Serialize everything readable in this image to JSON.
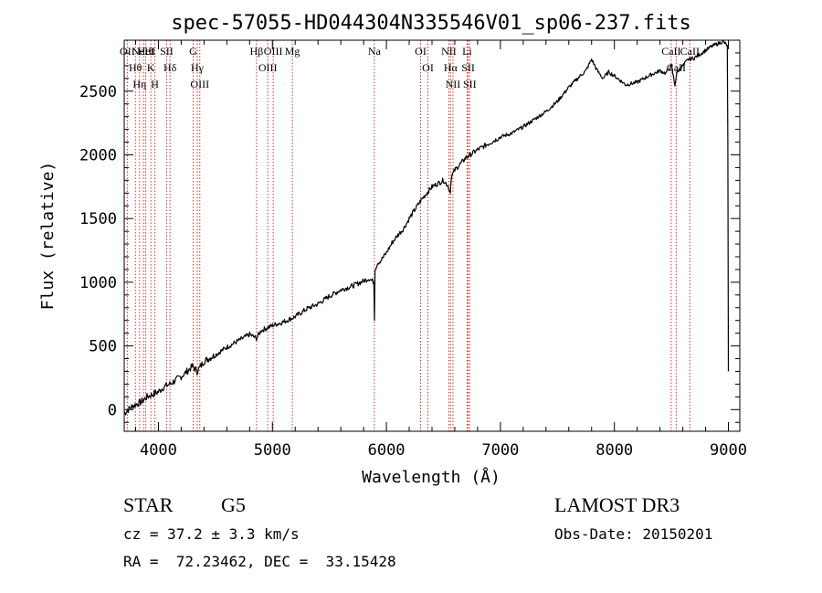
{
  "chart_data": {
    "type": "line",
    "title": "spec-57055-HD044304N335546V01_sp06-237.fits",
    "xlabel": "Wavelength (Å)",
    "ylabel": "Flux (relative)",
    "xlim": [
      3700,
      9100
    ],
    "ylim": [
      -170,
      2900
    ],
    "x_ticks": [
      4000,
      5000,
      6000,
      7000,
      8000,
      9000
    ],
    "y_ticks": [
      0,
      500,
      1000,
      1500,
      2000,
      2500
    ],
    "grid": false,
    "series": [
      {
        "name": "flux",
        "color": "#000000",
        "x": [
          3700,
          3760,
          3800,
          3850,
          3900,
          3950,
          4000,
          4050,
          4100,
          4150,
          4200,
          4250,
          4300,
          4340,
          4400,
          4500,
          4600,
          4700,
          4800,
          4860,
          4900,
          5000,
          5100,
          5200,
          5300,
          5400,
          5500,
          5600,
          5700,
          5800,
          5850,
          5890,
          5895,
          5900,
          5920,
          5950,
          6000,
          6050,
          6100,
          6150,
          6200,
          6300,
          6400,
          6500,
          6540,
          6560,
          6570,
          6600,
          6700,
          6800,
          6900,
          7000,
          7100,
          7200,
          7300,
          7400,
          7500,
          7600,
          7700,
          7750,
          7800,
          7850,
          7900,
          7950,
          8000,
          8100,
          8200,
          8300,
          8400,
          8450,
          8500,
          8530,
          8550,
          8600,
          8650,
          8700,
          8800,
          8850,
          8900,
          8950,
          8990,
          8995,
          9000
        ],
        "values": [
          -30,
          20,
          40,
          60,
          100,
          120,
          140,
          180,
          200,
          230,
          260,
          300,
          340,
          300,
          380,
          430,
          490,
          540,
          590,
          560,
          620,
          660,
          690,
          730,
          790,
          830,
          890,
          940,
          970,
          1010,
          1030,
          1000,
          700,
          1100,
          1150,
          1170,
          1230,
          1310,
          1370,
          1420,
          1500,
          1640,
          1750,
          1800,
          1760,
          1700,
          1830,
          1880,
          1980,
          2040,
          2090,
          2140,
          2170,
          2220,
          2280,
          2340,
          2420,
          2530,
          2620,
          2660,
          2750,
          2660,
          2600,
          2650,
          2620,
          2550,
          2570,
          2620,
          2660,
          2640,
          2700,
          2550,
          2650,
          2700,
          2750,
          2760,
          2820,
          2850,
          2870,
          2890,
          2860,
          2100,
          300
        ]
      }
    ],
    "lines": [
      {
        "wavelength": 3727,
        "labels": [
          "OII"
        ]
      },
      {
        "wavelength": 3798,
        "labels": [
          "Hθ"
        ]
      },
      {
        "wavelength": 3835,
        "labels": [
          "Hη"
        ]
      },
      {
        "wavelength": 3869,
        "labels": [
          "NeIII"
        ]
      },
      {
        "wavelength": 3889,
        "labels": [
          "HeI"
        ]
      },
      {
        "wavelength": 3934,
        "labels": [
          "K"
        ]
      },
      {
        "wavelength": 3969,
        "labels": [
          "H"
        ]
      },
      {
        "wavelength": 4072,
        "labels": [
          "SII"
        ]
      },
      {
        "wavelength": 4102,
        "labels": [
          "Hδ"
        ]
      },
      {
        "wavelength": 4305,
        "labels": [
          "G"
        ]
      },
      {
        "wavelength": 4341,
        "labels": [
          "Hγ"
        ]
      },
      {
        "wavelength": 4363,
        "labels": [
          "OIII"
        ]
      },
      {
        "wavelength": 4861,
        "labels": [
          "Hβ"
        ]
      },
      {
        "wavelength": 4959,
        "labels": [
          "OIII"
        ]
      },
      {
        "wavelength": 5007,
        "labels": [
          "OIII"
        ]
      },
      {
        "wavelength": 5175,
        "labels": [
          "Mg"
        ]
      },
      {
        "wavelength": 5894,
        "labels": [
          "Na"
        ]
      },
      {
        "wavelength": 6300,
        "labels": [
          "OI"
        ]
      },
      {
        "wavelength": 6364,
        "labels": [
          "OI"
        ]
      },
      {
        "wavelength": 6548,
        "labels": [
          "NII"
        ]
      },
      {
        "wavelength": 6563,
        "labels": [
          "Hα"
        ]
      },
      {
        "wavelength": 6584,
        "labels": [
          "NII"
        ]
      },
      {
        "wavelength": 6708,
        "labels": [
          "Li"
        ]
      },
      {
        "wavelength": 6717,
        "labels": [
          "SII"
        ]
      },
      {
        "wavelength": 6731,
        "labels": [
          "SII"
        ]
      },
      {
        "wavelength": 8498,
        "labels": [
          "CaII"
        ]
      },
      {
        "wavelength": 8542,
        "labels": [
          "CaII"
        ]
      },
      {
        "wavelength": 8662,
        "labels": [
          "CaII"
        ]
      }
    ]
  },
  "info": {
    "object_class": "STAR",
    "subclass": "G5",
    "survey": "LAMOST DR3",
    "redshift": "cz = 37.2 ± 3.3 km/s",
    "obs_date": "Obs-Date: 20150201",
    "coords": "RA =  72.23462, DEC =  33.15428"
  },
  "colors": {
    "line_marker": "#cc3333",
    "flux": "#000000",
    "axis": "#000000"
  }
}
